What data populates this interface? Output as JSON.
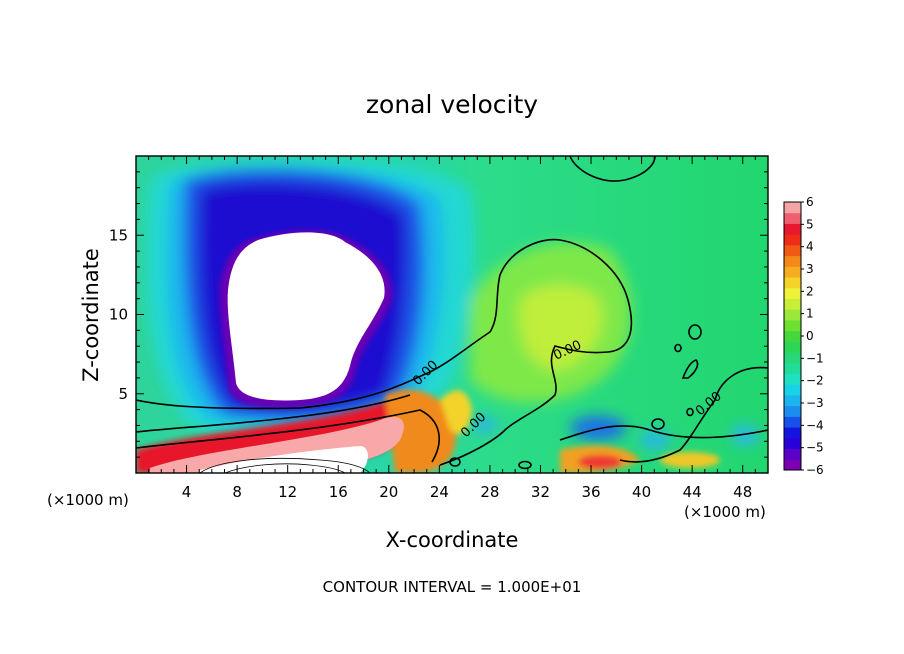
{
  "chart_data": {
    "type": "heatmap",
    "title": "zonal velocity",
    "xlabel": "X-coordinate",
    "ylabel": "Z-coordinate",
    "x_unit_left": "(×1000 m)",
    "x_unit_right": "(×1000 m)",
    "footer": "CONTOUR INTERVAL = 1.000E+01",
    "xlim": [
      0,
      50
    ],
    "ylim": [
      0,
      20
    ],
    "x_ticks": [
      "4",
      "8",
      "12",
      "16",
      "20",
      "24",
      "28",
      "32",
      "36",
      "40",
      "44",
      "48"
    ],
    "y_ticks": [
      "5",
      "10",
      "15"
    ],
    "colorbar": {
      "min": -6,
      "max": 6,
      "tick_labels": [
        "6",
        "5",
        "4",
        "3",
        "2",
        "1",
        "0",
        "−1",
        "−2",
        "−3",
        "−4",
        "−5",
        "−6"
      ]
    },
    "contour_labels": [
      {
        "text": "0.00",
        "x": 23.5,
        "z": 6.2
      },
      {
        "text": "0.00",
        "x": 25.5,
        "z": 2.8
      },
      {
        "text": "0.00",
        "x": 34.5,
        "z": 7.5
      },
      {
        "text": "0.00",
        "x": 45.5,
        "z": 4.3
      }
    ]
  }
}
